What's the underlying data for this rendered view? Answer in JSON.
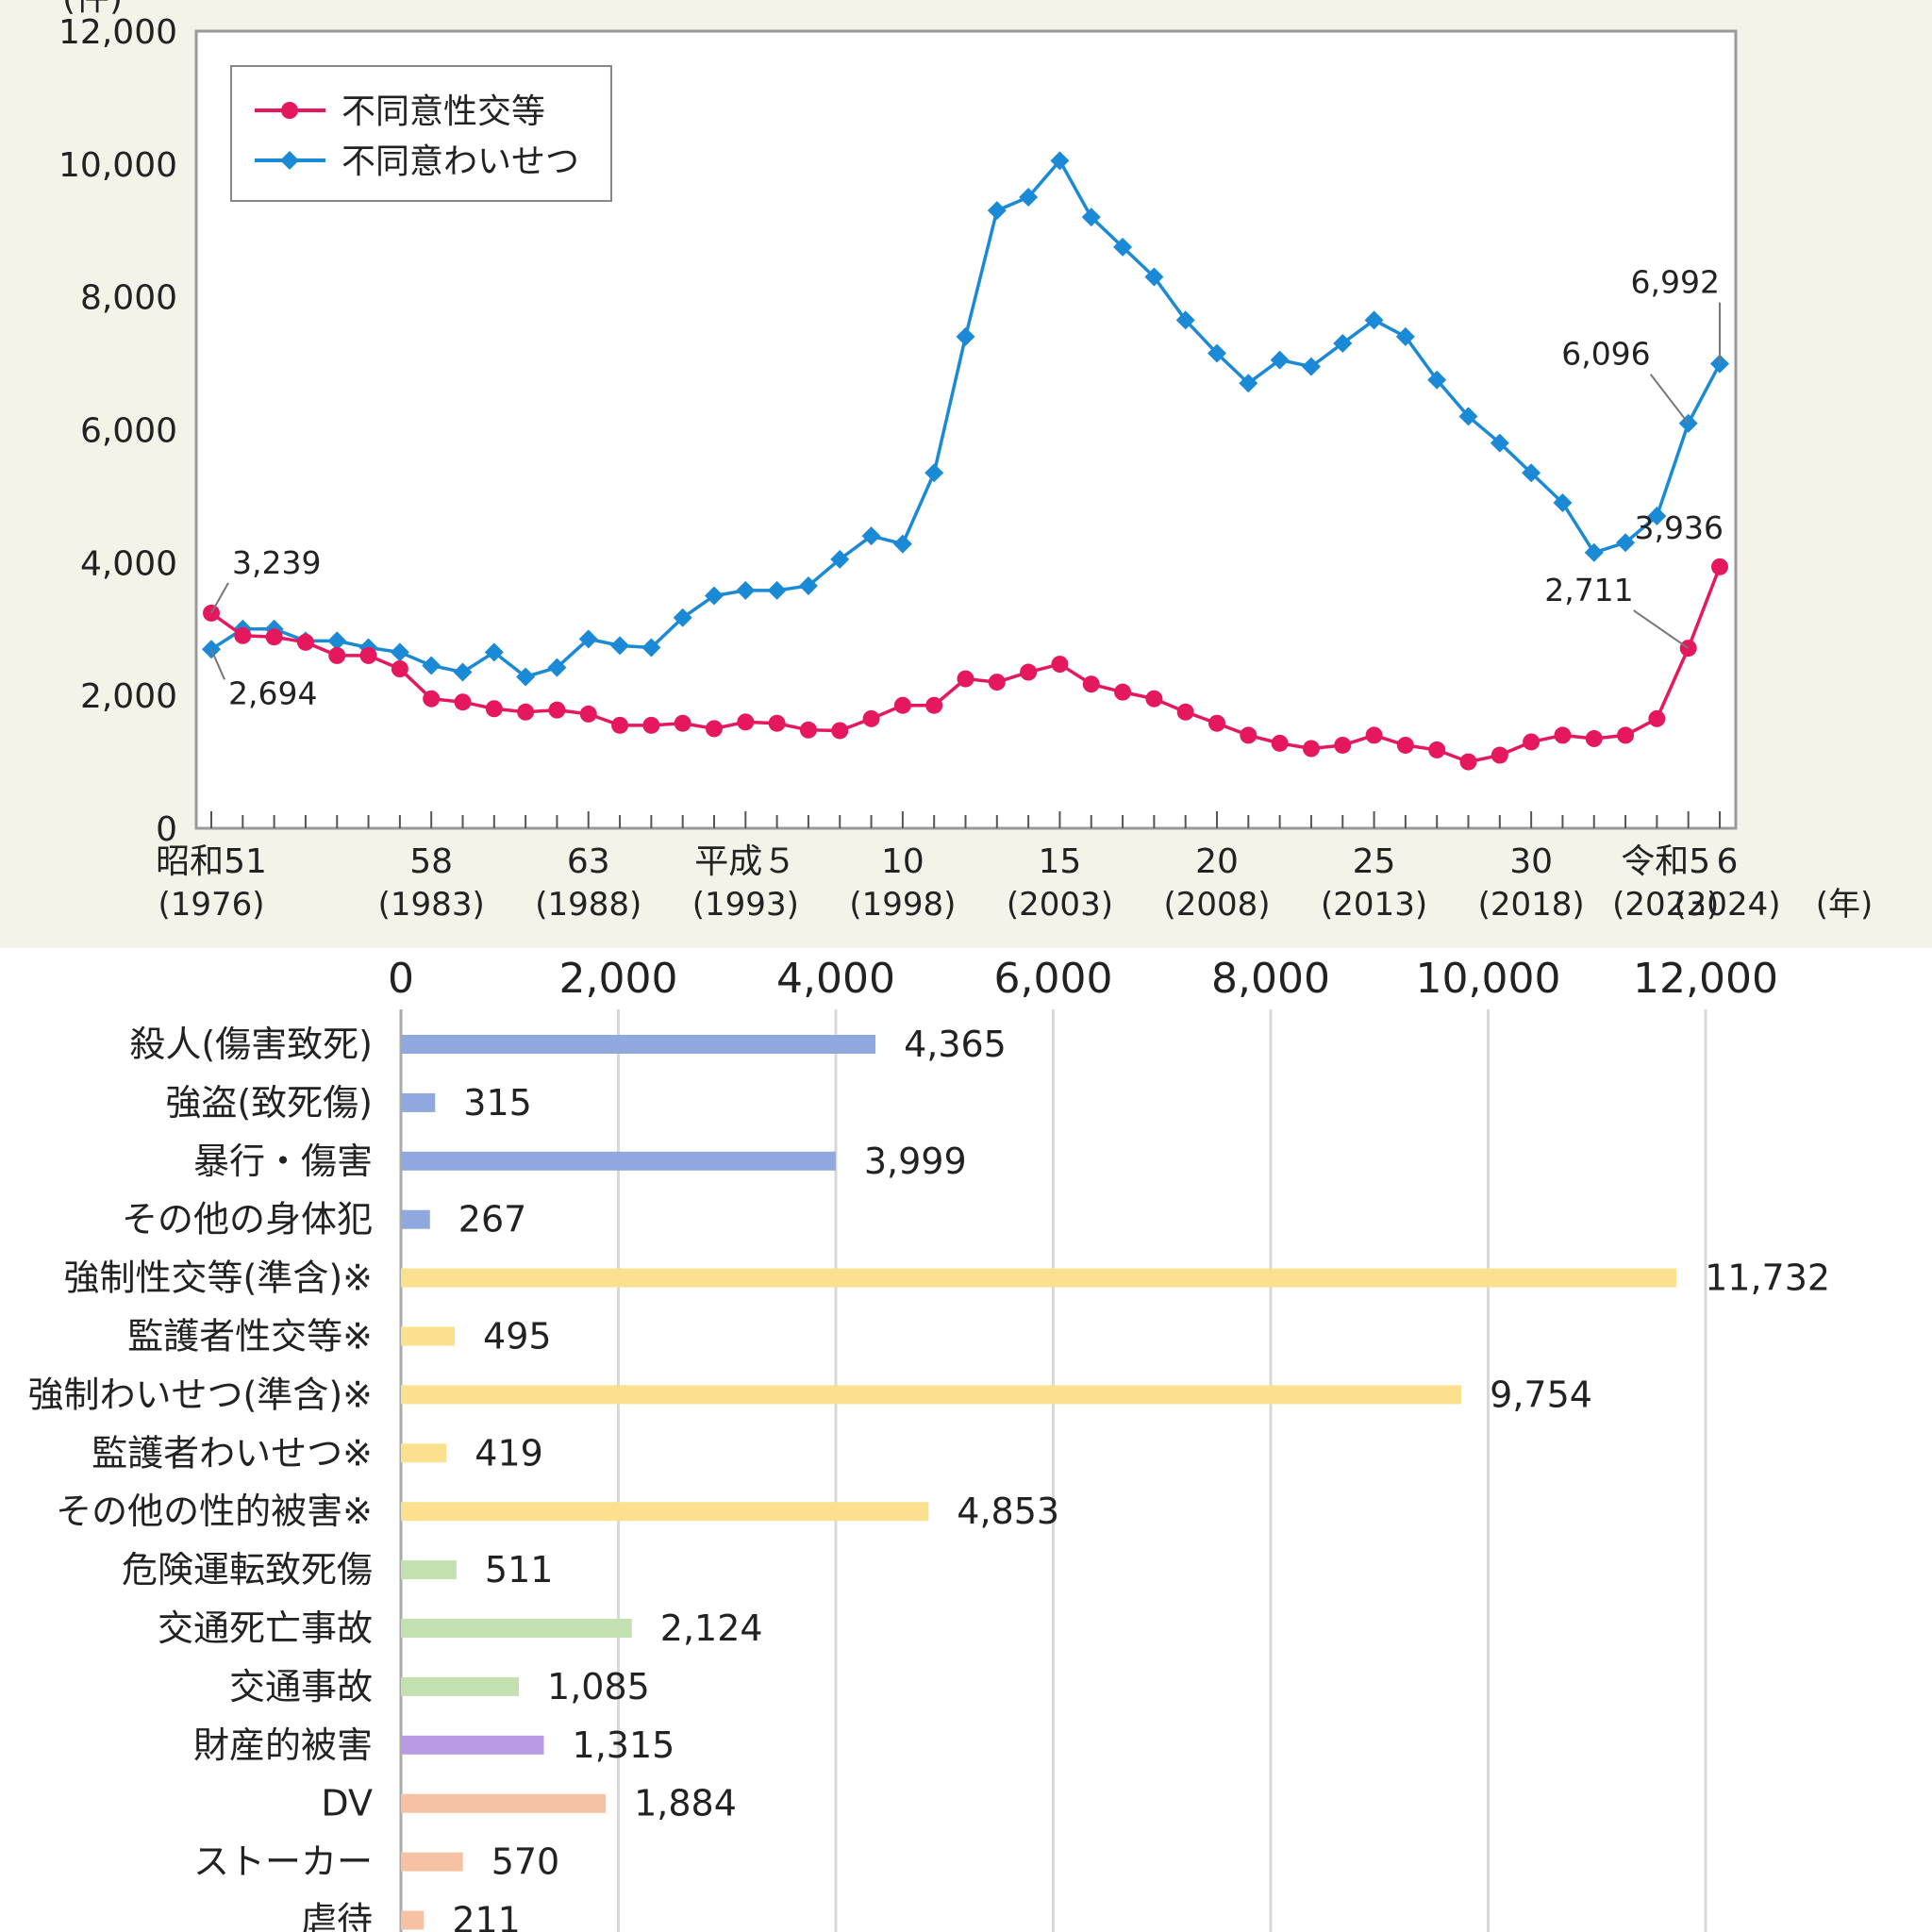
{
  "chart_data": [
    {
      "type": "line",
      "title": "",
      "ylabel": "(件)",
      "xlabel": "(年)",
      "ylim": [
        0,
        12000
      ],
      "yticks": [
        "0",
        "2,000",
        "4,000",
        "6,000",
        "8,000",
        "10,000",
        "12,000"
      ],
      "x": [
        1976,
        1977,
        1978,
        1979,
        1980,
        1981,
        1982,
        1983,
        1984,
        1985,
        1986,
        1987,
        1988,
        1989,
        1990,
        1991,
        1992,
        1993,
        1994,
        1995,
        1996,
        1997,
        1998,
        1999,
        2000,
        2001,
        2002,
        2003,
        2004,
        2005,
        2006,
        2007,
        2008,
        2009,
        2010,
        2011,
        2012,
        2013,
        2014,
        2015,
        2016,
        2017,
        2018,
        2019,
        2020,
        2021,
        2022,
        2023,
        2024
      ],
      "xticks": [
        {
          "year": 1976,
          "era": "昭和51",
          "greg": "(1976)"
        },
        {
          "year": 1983,
          "era": "58",
          "greg": "(1983)"
        },
        {
          "year": 1988,
          "era": "63",
          "greg": "(1988)"
        },
        {
          "year": 1993,
          "era": "平成５",
          "greg": "(1993)"
        },
        {
          "year": 1998,
          "era": "10",
          "greg": "(1998)"
        },
        {
          "year": 2003,
          "era": "15",
          "greg": "(2003)"
        },
        {
          "year": 2008,
          "era": "20",
          "greg": "(2008)"
        },
        {
          "year": 2013,
          "era": "25",
          "greg": "(2013)"
        },
        {
          "year": 2018,
          "era": "30",
          "greg": "(2018)"
        },
        {
          "year": 2023,
          "era": "令和5",
          "greg": "(2023)"
        },
        {
          "year": 2024,
          "era": "6",
          "greg": "(2024)"
        }
      ],
      "legend_position": "top-left",
      "series": [
        {
          "name": "不同意性交等",
          "color": "#e5185e",
          "marker": "circle",
          "values": [
            3239,
            2900,
            2880,
            2800,
            2600,
            2600,
            2400,
            1950,
            1900,
            1800,
            1750,
            1780,
            1720,
            1550,
            1550,
            1580,
            1500,
            1600,
            1580,
            1480,
            1470,
            1650,
            1850,
            1850,
            2250,
            2200,
            2350,
            2470,
            2170,
            2050,
            1950,
            1750,
            1580,
            1400,
            1280,
            1200,
            1250,
            1400,
            1250,
            1180,
            1000,
            1100,
            1300,
            1400,
            1350,
            1400,
            1650,
            2711,
            3936
          ]
        },
        {
          "name": "不同意わいせつ",
          "color": "#1a8ad6",
          "marker": "diamond",
          "values": [
            2694,
            3000,
            3000,
            2820,
            2820,
            2720,
            2650,
            2450,
            2350,
            2650,
            2280,
            2420,
            2850,
            2750,
            2720,
            3170,
            3500,
            3580,
            3580,
            3650,
            4050,
            4400,
            4280,
            5350,
            7400,
            9300,
            9500,
            10050,
            9200,
            8750,
            8300,
            7650,
            7150,
            6700,
            7050,
            6950,
            7300,
            7650,
            7400,
            6750,
            6200,
            5800,
            5350,
            4900,
            4150,
            4300,
            4700,
            6096,
            6992
          ]
        }
      ],
      "annotations": [
        {
          "series": 0,
          "index": 0,
          "text": "3,239"
        },
        {
          "series": 1,
          "index": 0,
          "text": "2,694"
        },
        {
          "series": 0,
          "index": 47,
          "text": "2,711"
        },
        {
          "series": 0,
          "index": 48,
          "text": "3,936"
        },
        {
          "series": 1,
          "index": 47,
          "text": "6,096"
        },
        {
          "series": 1,
          "index": 48,
          "text": "6,992"
        }
      ]
    },
    {
      "type": "bar",
      "orientation": "horizontal",
      "title": "",
      "xlim": [
        0,
        12000
      ],
      "xticks": [
        "0",
        "2,000",
        "4,000",
        "6,000",
        "8,000",
        "10,000",
        "12,000"
      ],
      "grid": true,
      "categories": [
        "殺人(傷害致死)",
        "強盗(致死傷)",
        "暴行・傷害",
        "その他の身体犯",
        "強制性交等(準含)※",
        "監護者性交等※",
        "強制わいせつ(準含)※",
        "監護者わいせつ※",
        "その他の性的被害※",
        "危険運転致死傷",
        "交通死亡事故",
        "交通事故",
        "財産的被害",
        "DV",
        "ストーカー",
        "虐待"
      ],
      "values": [
        4365,
        315,
        3999,
        267,
        11732,
        495,
        9754,
        419,
        4853,
        511,
        2124,
        1085,
        1315,
        1884,
        570,
        211
      ],
      "value_labels": [
        "4,365",
        "315",
        "3,999",
        "267",
        "11,732",
        "495",
        "9,754",
        "419",
        "4,853",
        "511",
        "2,124",
        "1,085",
        "1,315",
        "1,884",
        "570",
        "211"
      ],
      "colors": [
        "#8fa8de",
        "#8fa8de",
        "#8fa8de",
        "#8fa8de",
        "#fbe08f",
        "#fbe08f",
        "#fbe08f",
        "#fbe08f",
        "#fbe08f",
        "#c3e0b0",
        "#c3e0b0",
        "#c3e0b0",
        "#b99be3",
        "#f6c2a4",
        "#f6c2a4",
        "#f6c2a4"
      ]
    }
  ]
}
